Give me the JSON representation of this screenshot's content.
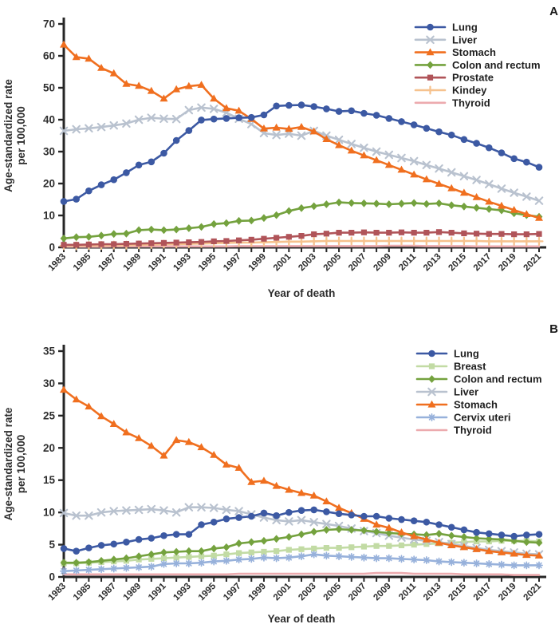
{
  "figure": {
    "background": "#ffffff",
    "axis_color": "#262626",
    "text_color": "#2d2d2d"
  },
  "chart_data": [
    {
      "type": "line",
      "panel_label": "A",
      "xlabel": "Year of death",
      "ylabel": [
        "Age-standardized rate",
        "per 100,000"
      ],
      "ylim": [
        0,
        70
      ],
      "yticks": [
        0,
        10,
        20,
        30,
        40,
        50,
        60,
        70
      ],
      "grid": false,
      "legend_position": "top-right-inside",
      "x": [
        1983,
        1984,
        1985,
        1986,
        1987,
        1988,
        1989,
        1990,
        1991,
        1992,
        1993,
        1994,
        1995,
        1996,
        1997,
        1998,
        1999,
        2000,
        2001,
        2002,
        2003,
        2004,
        2005,
        2006,
        2007,
        2008,
        2009,
        2010,
        2011,
        2012,
        2013,
        2014,
        2015,
        2016,
        2017,
        2018,
        2019,
        2020,
        2021
      ],
      "xtick_labels": [
        "1983",
        "1985",
        "1987",
        "1989",
        "1991",
        "1993",
        "1995",
        "1997",
        "1999",
        "2001",
        "2003",
        "2005",
        "2007",
        "2009",
        "2011",
        "2013",
        "2015",
        "2017",
        "2019",
        "2021"
      ],
      "draw_order": [
        6,
        5,
        4,
        3,
        1,
        2,
        0
      ],
      "series": [
        {
          "name": "Lung",
          "color": "#3c59a3",
          "marker": "circle",
          "values": [
            14.4,
            15.1,
            17.7,
            19.6,
            21.2,
            23.4,
            25.8,
            26.8,
            29.5,
            33.5,
            36.6,
            39.9,
            40.2,
            40.4,
            40.6,
            40.7,
            41.5,
            44.3,
            44.5,
            44.6,
            44.1,
            43.4,
            42.6,
            42.8,
            42.0,
            41.4,
            40.4,
            39.4,
            38.4,
            37.3,
            36.2,
            35.2,
            33.8,
            32.6,
            31.2,
            29.6,
            27.8,
            26.7,
            25.1
          ]
        },
        {
          "name": "Liver",
          "color": "#b9c2cf",
          "marker": "x",
          "values": [
            36.5,
            37.0,
            37.3,
            37.7,
            38.2,
            38.8,
            40.0,
            40.6,
            40.3,
            40.2,
            43.0,
            43.8,
            43.4,
            42.2,
            40.3,
            38.6,
            35.8,
            35.2,
            35.6,
            35.0,
            36.5,
            35.0,
            33.7,
            32.4,
            31.2,
            30.0,
            29.0,
            28.0,
            27.0,
            25.8,
            24.7,
            23.5,
            22.3,
            21.1,
            19.8,
            18.4,
            17.1,
            15.9,
            14.6
          ]
        },
        {
          "name": "Stomach",
          "color": "#f06f1f",
          "marker": "triangle",
          "values": [
            63.5,
            59.6,
            59.1,
            56.2,
            54.5,
            51.2,
            50.6,
            49.0,
            46.6,
            49.5,
            50.5,
            50.9,
            46.6,
            43.6,
            42.8,
            40.2,
            37.2,
            37.5,
            37.1,
            37.7,
            36.3,
            33.9,
            32.0,
            30.3,
            28.8,
            27.3,
            25.8,
            24.3,
            22.8,
            21.3,
            19.9,
            18.5,
            17.1,
            15.7,
            14.3,
            13.0,
            11.7,
            10.4,
            9.2
          ]
        },
        {
          "name": "Colon and rectum",
          "color": "#74a23e",
          "marker": "diamond",
          "values": [
            2.8,
            3.2,
            3.3,
            3.7,
            4.2,
            4.3,
            5.4,
            5.6,
            5.4,
            5.6,
            6.0,
            6.4,
            7.3,
            7.6,
            8.3,
            8.4,
            9.2,
            10.1,
            11.4,
            12.3,
            12.9,
            13.5,
            14.1,
            13.9,
            13.8,
            13.7,
            13.5,
            13.7,
            13.9,
            13.6,
            13.8,
            13.2,
            12.8,
            12.4,
            12.0,
            11.6,
            10.7,
            10.1,
            9.6
          ]
        },
        {
          "name": "Prostate",
          "color": "#b05459",
          "marker": "square",
          "values": [
            0.8,
            0.8,
            0.9,
            1.0,
            1.0,
            1.1,
            1.2,
            1.3,
            1.4,
            1.5,
            1.6,
            1.7,
            1.9,
            2.0,
            2.2,
            2.4,
            2.7,
            3.0,
            3.3,
            3.6,
            4.1,
            4.3,
            4.6,
            4.6,
            4.7,
            4.6,
            4.6,
            4.7,
            4.6,
            4.6,
            4.8,
            4.6,
            4.4,
            4.3,
            4.2,
            4.2,
            4.1,
            4.1,
            4.2
          ]
        },
        {
          "name": "Kindey",
          "color": "#f6c28e",
          "marker": "plus",
          "values": [
            0.5,
            0.5,
            0.6,
            0.6,
            0.7,
            0.7,
            0.8,
            0.9,
            1.0,
            1.0,
            1.1,
            1.2,
            1.3,
            1.4,
            1.5,
            1.5,
            1.6,
            1.7,
            1.8,
            1.8,
            1.9,
            2.0,
            2.0,
            2.0,
            2.0,
            2.0,
            2.0,
            2.0,
            2.0,
            2.0,
            2.0,
            2.0,
            2.0,
            2.0,
            1.9,
            1.9,
            1.9,
            1.9,
            1.9
          ]
        },
        {
          "name": "Thyroid",
          "color": "#ecaaae",
          "marker": "none",
          "values": [
            0.2,
            0.2,
            0.2,
            0.2,
            0.3,
            0.3,
            0.3,
            0.3,
            0.3,
            0.3,
            0.3,
            0.3,
            0.3,
            0.3,
            0.4,
            0.4,
            0.4,
            0.4,
            0.4,
            0.4,
            0.4,
            0.4,
            0.4,
            0.4,
            0.4,
            0.4,
            0.5,
            0.5,
            0.5,
            0.4,
            0.4,
            0.4,
            0.4,
            0.3,
            0.3,
            0.3,
            0.3,
            0.3,
            0.3
          ]
        }
      ]
    },
    {
      "type": "line",
      "panel_label": "B",
      "xlabel": "Year of death",
      "ylabel": [
        "Age-standardized rate",
        "per 100,000"
      ],
      "ylim": [
        0,
        35
      ],
      "yticks": [
        0,
        5,
        10,
        15,
        20,
        25,
        30,
        35
      ],
      "grid": false,
      "legend_position": "top-right-inside",
      "x": [
        1983,
        1984,
        1985,
        1986,
        1987,
        1988,
        1989,
        1990,
        1991,
        1992,
        1993,
        1994,
        1995,
        1996,
        1997,
        1998,
        1999,
        2000,
        2001,
        2002,
        2003,
        2004,
        2005,
        2006,
        2007,
        2008,
        2009,
        2010,
        2011,
        2012,
        2013,
        2014,
        2015,
        2016,
        2017,
        2018,
        2019,
        2020,
        2021
      ],
      "xtick_labels": [
        "1983",
        "1985",
        "1987",
        "1989",
        "1991",
        "1993",
        "1995",
        "1997",
        "1999",
        "2001",
        "2003",
        "2005",
        "2007",
        "2009",
        "2011",
        "2013",
        "2015",
        "2017",
        "2019",
        "2021"
      ],
      "draw_order": [
        6,
        1,
        5,
        3,
        2,
        4,
        0
      ],
      "series": [
        {
          "name": "Lung",
          "color": "#3c59a3",
          "marker": "circle",
          "values": [
            4.4,
            4.0,
            4.5,
            4.9,
            5.1,
            5.4,
            5.8,
            6.0,
            6.4,
            6.6,
            6.6,
            8.1,
            8.5,
            9.0,
            9.2,
            9.4,
            9.9,
            9.5,
            10.0,
            10.3,
            10.4,
            10.1,
            9.8,
            9.6,
            9.4,
            9.4,
            9.1,
            8.9,
            8.7,
            8.5,
            8.1,
            7.7,
            7.3,
            6.9,
            6.7,
            6.5,
            6.3,
            6.5,
            6.6
          ]
        },
        {
          "name": "Breast",
          "color": "#c2dba4",
          "marker": "square",
          "values": [
            2.1,
            2.1,
            2.2,
            2.3,
            2.4,
            2.5,
            2.7,
            2.8,
            2.9,
            3.0,
            3.1,
            3.2,
            3.3,
            3.5,
            3.7,
            3.8,
            3.9,
            4.0,
            4.2,
            4.3,
            4.4,
            4.5,
            4.5,
            4.6,
            4.7,
            4.8,
            4.8,
            4.9,
            5.0,
            5.1,
            5.2,
            5.3,
            5.4,
            5.5,
            5.5,
            5.6,
            5.6,
            5.6,
            5.5
          ]
        },
        {
          "name": "Colon and rectum",
          "color": "#74a23e",
          "marker": "diamond",
          "values": [
            2.2,
            2.2,
            2.3,
            2.5,
            2.7,
            2.9,
            3.2,
            3.5,
            3.8,
            3.9,
            4.0,
            4.0,
            4.4,
            4.6,
            5.2,
            5.4,
            5.6,
            5.9,
            6.2,
            6.6,
            7.0,
            7.3,
            7.4,
            7.3,
            7.2,
            7.0,
            6.8,
            6.7,
            6.6,
            6.5,
            6.7,
            6.4,
            6.2,
            6.0,
            5.9,
            5.8,
            5.6,
            5.4,
            5.3
          ]
        },
        {
          "name": "Liver",
          "color": "#b9c2cf",
          "marker": "x",
          "values": [
            9.9,
            9.5,
            9.5,
            10.0,
            10.2,
            10.3,
            10.4,
            10.5,
            10.3,
            10.0,
            10.8,
            10.8,
            10.7,
            10.4,
            10.2,
            9.7,
            9.2,
            8.8,
            8.6,
            8.8,
            8.5,
            8.2,
            7.9,
            7.5,
            7.1,
            6.8,
            6.4,
            6.1,
            5.8,
            5.6,
            5.4,
            5.1,
            4.8,
            4.5,
            4.2,
            4.0,
            3.8,
            3.6,
            3.5
          ]
        },
        {
          "name": "Stomach",
          "color": "#f06f1f",
          "marker": "triangle",
          "values": [
            29.0,
            27.5,
            26.4,
            24.9,
            23.7,
            22.4,
            21.5,
            20.3,
            18.8,
            21.2,
            20.9,
            20.1,
            18.9,
            17.4,
            16.9,
            14.7,
            14.9,
            14.1,
            13.5,
            13.0,
            12.6,
            11.7,
            10.7,
            9.9,
            9.0,
            8.1,
            7.6,
            6.9,
            6.3,
            5.8,
            5.3,
            4.9,
            4.6,
            4.3,
            4.0,
            3.8,
            3.6,
            3.4,
            3.3
          ]
        },
        {
          "name": "Cervix uteri",
          "color": "#97b1db",
          "marker": "asterisk",
          "values": [
            0.9,
            1.0,
            1.1,
            1.2,
            1.3,
            1.4,
            1.5,
            1.6,
            2.0,
            2.1,
            2.1,
            2.2,
            2.4,
            2.5,
            2.7,
            2.8,
            3.0,
            2.9,
            3.0,
            3.2,
            3.5,
            3.3,
            3.2,
            3.1,
            3.0,
            2.9,
            2.9,
            2.8,
            2.7,
            2.6,
            2.4,
            2.3,
            2.2,
            2.1,
            2.0,
            1.9,
            1.8,
            1.8,
            1.8
          ]
        },
        {
          "name": "Thyroid",
          "color": "#ecaaae",
          "marker": "none",
          "values": [
            0.4,
            0.4,
            0.4,
            0.4,
            0.4,
            0.4,
            0.4,
            0.4,
            0.4,
            0.4,
            0.4,
            0.4,
            0.4,
            0.4,
            0.5,
            0.5,
            0.5,
            0.5,
            0.5,
            0.5,
            0.5,
            0.5,
            0.5,
            0.5,
            0.5,
            0.6,
            0.6,
            0.6,
            0.5,
            0.5,
            0.5,
            0.5,
            0.4,
            0.4,
            0.4,
            0.4,
            0.3,
            0.3,
            0.3
          ]
        }
      ]
    }
  ]
}
